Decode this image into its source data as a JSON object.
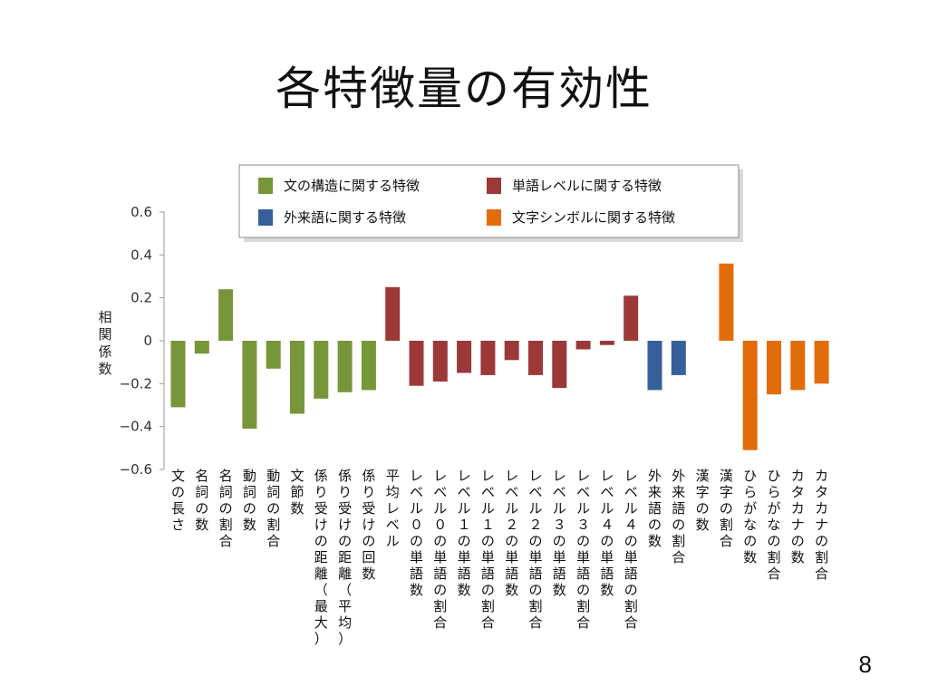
{
  "slide": {
    "title": "各特徴量の有効性",
    "page_number": "8"
  },
  "chart_data": {
    "type": "bar",
    "ylabel": "相関係数",
    "ylim": [
      -0.6,
      0.6
    ],
    "yticks": [
      0.6,
      0.4,
      0.2,
      0,
      -0.2,
      -0.4,
      -0.6
    ],
    "ytick_labels": [
      "0.6",
      "0.4",
      "0.2",
      "0",
      "−0.2",
      "−0.4",
      "−0.6"
    ],
    "grid": false,
    "legend_position": "top",
    "groups": [
      {
        "name": "文の構造に関する特徴",
        "color": "#77963a"
      },
      {
        "name": "単語レベルに関する特徴",
        "color": "#9c3838"
      },
      {
        "name": "外来語に関する特徴",
        "color": "#36609a"
      },
      {
        "name": "文字シンボルに関する特徴",
        "color": "#e36c0a"
      }
    ],
    "categories": [
      "文の長さ",
      "名詞の数",
      "名詞の割合",
      "動詞の数",
      "動詞の割合",
      "文節数",
      "係り受けの距離（最大）",
      "係り受けの距離（平均）",
      "係り受けの回数",
      "平均レベル",
      "レベル０の単語数",
      "レベル０の単語の割合",
      "レベル１の単語数",
      "レベル１の単語の割合",
      "レベル２の単語数",
      "レベル２の単語の割合",
      "レベル３の単語数",
      "レベル３の単語の割合",
      "レベル４の単語数",
      "レベル４の単語の割合",
      "外来語の数",
      "外来語の割合",
      "漢字の数",
      "漢字の割合",
      "ひらがなの数",
      "ひらがなの割合",
      "カタカナの数",
      "カタカナの割合"
    ],
    "values": [
      -0.31,
      -0.06,
      0.24,
      -0.41,
      -0.13,
      -0.34,
      -0.27,
      -0.24,
      -0.23,
      0.25,
      -0.21,
      -0.19,
      -0.15,
      -0.16,
      -0.09,
      -0.16,
      -0.22,
      -0.04,
      -0.02,
      0.21,
      -0.23,
      -0.16,
      0.0,
      0.36,
      -0.51,
      -0.25,
      -0.23,
      -0.2
    ],
    "group_index": [
      0,
      0,
      0,
      0,
      0,
      0,
      0,
      0,
      0,
      1,
      1,
      1,
      1,
      1,
      1,
      1,
      1,
      1,
      1,
      1,
      2,
      2,
      3,
      3,
      3,
      3,
      3,
      3
    ]
  }
}
